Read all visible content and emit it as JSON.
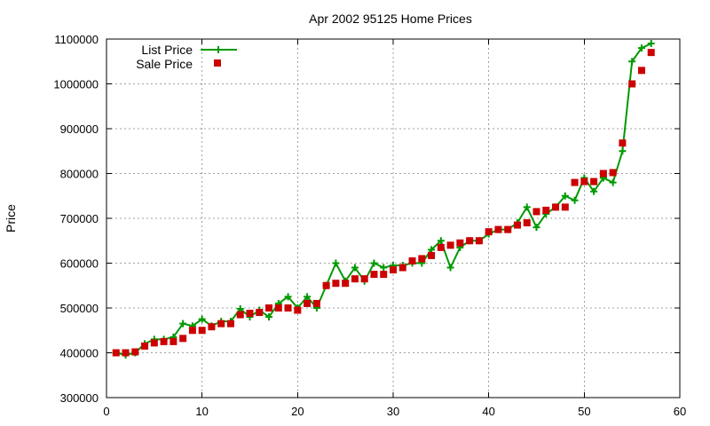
{
  "chart_data": {
    "type": "line",
    "title": "Apr 2002 95125 Home Prices",
    "xlabel": "",
    "ylabel": "Price",
    "xlim": [
      0,
      60
    ],
    "ylim": [
      300000,
      1100000
    ],
    "x_ticks": [
      0,
      10,
      20,
      30,
      40,
      50,
      60
    ],
    "y_ticks": [
      300000,
      400000,
      500000,
      600000,
      700000,
      800000,
      900000,
      1000000,
      1100000
    ],
    "grid": true,
    "legend_position": "top-left",
    "x": [
      1,
      2,
      3,
      4,
      5,
      6,
      7,
      8,
      9,
      10,
      11,
      12,
      13,
      14,
      15,
      16,
      17,
      18,
      19,
      20,
      21,
      22,
      23,
      24,
      25,
      26,
      27,
      28,
      29,
      30,
      31,
      32,
      33,
      34,
      35,
      36,
      37,
      38,
      39,
      40,
      41,
      42,
      43,
      44,
      45,
      46,
      47,
      48,
      49,
      50,
      51,
      52,
      53,
      54,
      55,
      56,
      57
    ],
    "series": [
      {
        "name": "List Price",
        "style": "line-with-plus-markers",
        "color": "#009900",
        "values": [
          400000,
          395000,
          400000,
          420000,
          430000,
          430000,
          435000,
          465000,
          460000,
          475000,
          460000,
          470000,
          470000,
          498000,
          480000,
          495000,
          480000,
          510000,
          525000,
          500000,
          525000,
          500000,
          550000,
          600000,
          560000,
          590000,
          560000,
          600000,
          590000,
          595000,
          595000,
          600000,
          600000,
          630000,
          650000,
          590000,
          635000,
          650000,
          650000,
          665000,
          675000,
          675000,
          690000,
          725000,
          680000,
          710000,
          725000,
          750000,
          740000,
          790000,
          760000,
          790000,
          780000,
          850000,
          1050000,
          1080000,
          1090000
        ]
      },
      {
        "name": "Sale Price",
        "style": "square-markers",
        "color": "#cc0000",
        "values": [
          400000,
          400000,
          402000,
          415000,
          422000,
          425000,
          425000,
          432000,
          450000,
          450000,
          458000,
          465000,
          465000,
          485000,
          488000,
          490000,
          500000,
          500000,
          500000,
          495000,
          510000,
          510000,
          550000,
          555000,
          555000,
          565000,
          565000,
          575000,
          575000,
          585000,
          590000,
          605000,
          610000,
          617000,
          635000,
          640000,
          645000,
          650000,
          650000,
          670000,
          675000,
          675000,
          685000,
          690000,
          715000,
          718000,
          725000,
          725000,
          780000,
          782000,
          782000,
          800000,
          802000,
          868000,
          1000000,
          1030000,
          1070000
        ]
      }
    ]
  }
}
